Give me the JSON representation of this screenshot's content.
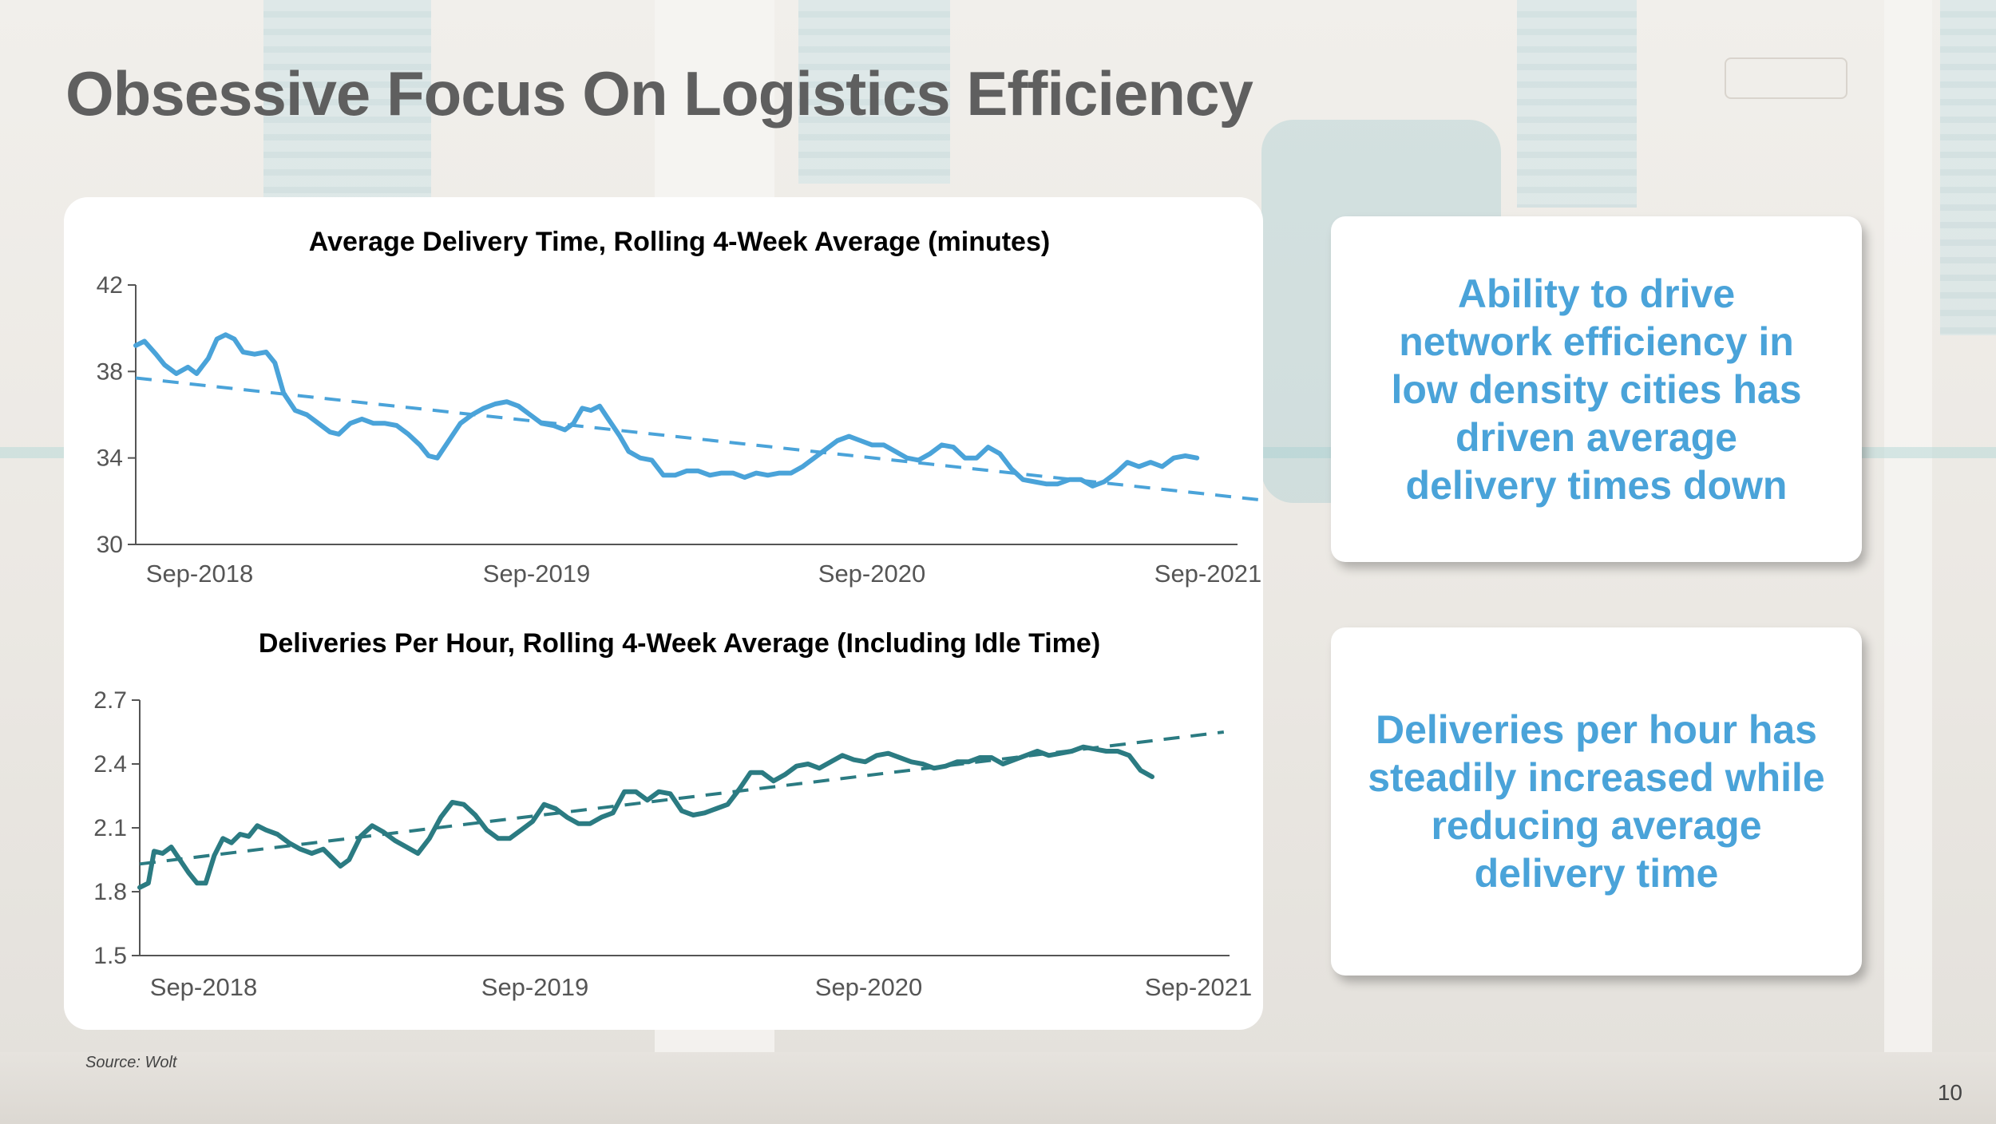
{
  "slide": {
    "title": "Obsessive Focus On Logistics Efficiency",
    "source": "Source: Wolt",
    "page_number": "10"
  },
  "callouts": [
    {
      "text": "Ability to drive\nnetwork efficiency in\nlow density cities has\ndriven average\ndelivery times down"
    },
    {
      "text": "Deliveries per hour has\nsteadily increased while\nreducing average\ndelivery time"
    }
  ],
  "colors": {
    "title": "#5f5f5f",
    "callout_text": "#4aa3d9",
    "series_delivery_time": "#4aa3d9",
    "series_deliveries_per_hour": "#2b7b82"
  },
  "chart_data": [
    {
      "type": "line",
      "title": "Average Delivery Time, Rolling 4-Week Average (minutes)",
      "xlabel": "",
      "ylabel": "",
      "ylim": [
        30,
        42
      ],
      "yticks": [
        "42",
        "38",
        "34",
        "30"
      ],
      "xticks": [
        "Sep-2018",
        "Sep-2019",
        "Sep-2020",
        "Sep-2021"
      ],
      "x_range_months": [
        0,
        38
      ],
      "grid": false,
      "legend": "none",
      "series": [
        {
          "style": "solid",
          "points": [
            [
              0,
              39.2
            ],
            [
              0.3,
              39.4
            ],
            [
              0.7,
              38.8
            ],
            [
              1.0,
              38.3
            ],
            [
              1.4,
              37.9
            ],
            [
              1.8,
              38.2
            ],
            [
              2.1,
              37.9
            ],
            [
              2.5,
              38.6
            ],
            [
              2.8,
              39.5
            ],
            [
              3.1,
              39.7
            ],
            [
              3.4,
              39.5
            ],
            [
              3.7,
              38.9
            ],
            [
              4.1,
              38.8
            ],
            [
              4.5,
              38.9
            ],
            [
              4.8,
              38.4
            ],
            [
              5.1,
              37.0
            ],
            [
              5.5,
              36.2
            ],
            [
              5.9,
              36.0
            ],
            [
              6.3,
              35.6
            ],
            [
              6.7,
              35.2
            ],
            [
              7.0,
              35.1
            ],
            [
              7.4,
              35.6
            ],
            [
              7.8,
              35.8
            ],
            [
              8.2,
              35.6
            ],
            [
              8.6,
              35.6
            ],
            [
              9.0,
              35.5
            ],
            [
              9.4,
              35.1
            ],
            [
              9.8,
              34.6
            ],
            [
              10.1,
              34.1
            ],
            [
              10.4,
              34.0
            ],
            [
              10.8,
              34.8
            ],
            [
              11.2,
              35.6
            ],
            [
              11.6,
              36.0
            ],
            [
              12.0,
              36.3
            ],
            [
              12.4,
              36.5
            ],
            [
              12.8,
              36.6
            ],
            [
              13.2,
              36.4
            ],
            [
              13.6,
              36.0
            ],
            [
              14.0,
              35.6
            ],
            [
              14.4,
              35.5
            ],
            [
              14.8,
              35.3
            ],
            [
              15.1,
              35.6
            ],
            [
              15.4,
              36.3
            ],
            [
              15.7,
              36.2
            ],
            [
              16.0,
              36.4
            ],
            [
              16.3,
              35.8
            ],
            [
              16.7,
              35.0
            ],
            [
              17.0,
              34.3
            ],
            [
              17.4,
              34.0
            ],
            [
              17.8,
              33.9
            ],
            [
              18.2,
              33.2
            ],
            [
              18.6,
              33.2
            ],
            [
              19.0,
              33.4
            ],
            [
              19.4,
              33.4
            ],
            [
              19.8,
              33.2
            ],
            [
              20.2,
              33.3
            ],
            [
              20.6,
              33.3
            ],
            [
              21.0,
              33.1
            ],
            [
              21.4,
              33.3
            ],
            [
              21.8,
              33.2
            ],
            [
              22.2,
              33.3
            ],
            [
              22.6,
              33.3
            ],
            [
              23.0,
              33.6
            ],
            [
              23.4,
              34.0
            ],
            [
              23.8,
              34.4
            ],
            [
              24.2,
              34.8
            ],
            [
              24.6,
              35.0
            ],
            [
              25.0,
              34.8
            ],
            [
              25.4,
              34.6
            ],
            [
              25.8,
              34.6
            ],
            [
              26.2,
              34.3
            ],
            [
              26.6,
              34.0
            ],
            [
              27.0,
              33.9
            ],
            [
              27.4,
              34.2
            ],
            [
              27.8,
              34.6
            ],
            [
              28.2,
              34.5
            ],
            [
              28.6,
              34.0
            ],
            [
              29.0,
              34.0
            ],
            [
              29.4,
              34.5
            ],
            [
              29.8,
              34.2
            ],
            [
              30.2,
              33.5
            ],
            [
              30.6,
              33.0
            ],
            [
              31.0,
              32.9
            ],
            [
              31.4,
              32.8
            ],
            [
              31.8,
              32.8
            ],
            [
              32.2,
              33.0
            ],
            [
              32.6,
              33.0
            ],
            [
              33.0,
              32.7
            ],
            [
              33.4,
              32.9
            ],
            [
              33.8,
              33.3
            ],
            [
              34.2,
              33.8
            ],
            [
              34.6,
              33.6
            ],
            [
              35.0,
              33.8
            ],
            [
              35.4,
              33.6
            ],
            [
              35.8,
              34.0
            ],
            [
              36.2,
              34.1
            ],
            [
              36.6,
              34.0
            ]
          ]
        },
        {
          "style": "dashed",
          "points": [
            [
              0,
              37.7
            ],
            [
              39.2,
              32.0
            ]
          ]
        }
      ]
    },
    {
      "type": "line",
      "title": "Deliveries Per Hour, Rolling 4-Week Average (Including Idle Time)",
      "xlabel": "",
      "ylabel": "",
      "ylim": [
        1.5,
        2.7
      ],
      "yticks": [
        "2.7",
        "2.4",
        "2.1",
        "1.8",
        "1.5"
      ],
      "xticks": [
        "Sep-2018",
        "Sep-2019",
        "Sep-2020",
        "Sep-2021"
      ],
      "x_range_months": [
        0,
        38
      ],
      "grid": false,
      "legend": "none",
      "series": [
        {
          "style": "solid",
          "points": [
            [
              0,
              1.82
            ],
            [
              0.3,
              1.84
            ],
            [
              0.5,
              1.99
            ],
            [
              0.8,
              1.98
            ],
            [
              1.1,
              2.01
            ],
            [
              1.4,
              1.95
            ],
            [
              1.7,
              1.89
            ],
            [
              2.0,
              1.84
            ],
            [
              2.3,
              1.84
            ],
            [
              2.6,
              1.97
            ],
            [
              2.9,
              2.05
            ],
            [
              3.2,
              2.03
            ],
            [
              3.5,
              2.07
            ],
            [
              3.8,
              2.06
            ],
            [
              4.1,
              2.11
            ],
            [
              4.4,
              2.09
            ],
            [
              4.8,
              2.07
            ],
            [
              5.2,
              2.03
            ],
            [
              5.6,
              2.0
            ],
            [
              6.0,
              1.98
            ],
            [
              6.4,
              2.0
            ],
            [
              6.7,
              1.96
            ],
            [
              7.0,
              1.92
            ],
            [
              7.3,
              1.95
            ],
            [
              7.7,
              2.06
            ],
            [
              8.1,
              2.11
            ],
            [
              8.5,
              2.08
            ],
            [
              8.9,
              2.04
            ],
            [
              9.3,
              2.01
            ],
            [
              9.7,
              1.98
            ],
            [
              10.1,
              2.05
            ],
            [
              10.5,
              2.15
            ],
            [
              10.9,
              2.22
            ],
            [
              11.3,
              2.21
            ],
            [
              11.7,
              2.16
            ],
            [
              12.1,
              2.09
            ],
            [
              12.5,
              2.05
            ],
            [
              12.9,
              2.05
            ],
            [
              13.3,
              2.09
            ],
            [
              13.7,
              2.13
            ],
            [
              14.1,
              2.21
            ],
            [
              14.5,
              2.19
            ],
            [
              14.9,
              2.15
            ],
            [
              15.3,
              2.12
            ],
            [
              15.7,
              2.12
            ],
            [
              16.1,
              2.15
            ],
            [
              16.5,
              2.17
            ],
            [
              16.9,
              2.27
            ],
            [
              17.3,
              2.27
            ],
            [
              17.7,
              2.23
            ],
            [
              18.1,
              2.27
            ],
            [
              18.5,
              2.26
            ],
            [
              18.9,
              2.18
            ],
            [
              19.3,
              2.16
            ],
            [
              19.7,
              2.17
            ],
            [
              20.1,
              2.19
            ],
            [
              20.5,
              2.21
            ],
            [
              20.9,
              2.28
            ],
            [
              21.3,
              2.36
            ],
            [
              21.7,
              2.36
            ],
            [
              22.1,
              2.32
            ],
            [
              22.5,
              2.35
            ],
            [
              22.9,
              2.39
            ],
            [
              23.3,
              2.4
            ],
            [
              23.7,
              2.38
            ],
            [
              24.1,
              2.41
            ],
            [
              24.5,
              2.44
            ],
            [
              24.9,
              2.42
            ],
            [
              25.3,
              2.41
            ],
            [
              25.7,
              2.44
            ],
            [
              26.1,
              2.45
            ],
            [
              26.5,
              2.43
            ],
            [
              26.9,
              2.41
            ],
            [
              27.3,
              2.4
            ],
            [
              27.7,
              2.38
            ],
            [
              28.1,
              2.39
            ],
            [
              28.5,
              2.41
            ],
            [
              28.9,
              2.41
            ],
            [
              29.3,
              2.43
            ],
            [
              29.7,
              2.43
            ],
            [
              30.1,
              2.4
            ],
            [
              30.5,
              2.42
            ],
            [
              30.9,
              2.44
            ],
            [
              31.3,
              2.46
            ],
            [
              31.7,
              2.44
            ],
            [
              32.1,
              2.45
            ],
            [
              32.5,
              2.46
            ],
            [
              32.9,
              2.48
            ],
            [
              33.3,
              2.47
            ],
            [
              33.7,
              2.46
            ],
            [
              34.1,
              2.46
            ],
            [
              34.5,
              2.44
            ],
            [
              34.9,
              2.37
            ],
            [
              35.3,
              2.34
            ]
          ]
        },
        {
          "style": "dashed",
          "points": [
            [
              0,
              1.93
            ],
            [
              37.8,
              2.55
            ]
          ]
        }
      ]
    }
  ]
}
